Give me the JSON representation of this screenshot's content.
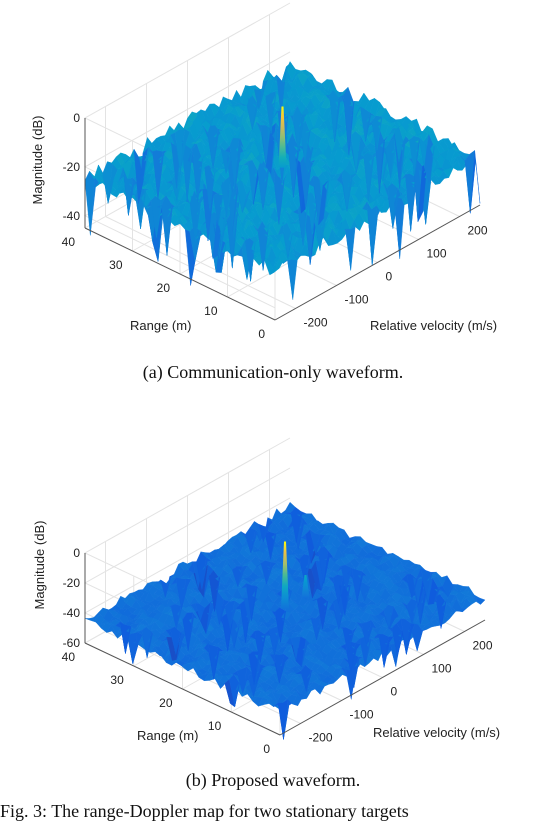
{
  "chart_data": [
    {
      "type": "surface",
      "caption": "(a) Communication-only waveform.",
      "zlabel": "Magnitude (dB)",
      "xlabel": "Relative velocity (m/s)",
      "ylabel": "Range (m)",
      "xticks": [
        "-200",
        "-100",
        "0",
        "100",
        "200"
      ],
      "yticks": [
        "0",
        "10",
        "20",
        "30",
        "40"
      ],
      "zticks": [
        "0",
        "-20",
        "-40"
      ],
      "xlim": [
        -250,
        250
      ],
      "ylim": [
        0,
        40
      ],
      "zlim": [
        -45,
        0
      ],
      "floor_level_db": -25,
      "peaks": [
        {
          "velocity": 0,
          "range": 20,
          "magnitude_db": 0
        }
      ],
      "colormap": "parula"
    },
    {
      "type": "surface",
      "caption": "(b) Proposed waveform.",
      "zlabel": "Magnitude (dB)",
      "xlabel": "Relative velocity (m/s)",
      "ylabel": "Range (m)",
      "xticks": [
        "-200",
        "-100",
        "0",
        "100",
        "200"
      ],
      "yticks": [
        "0",
        "10",
        "20",
        "30",
        "40"
      ],
      "zticks": [
        "0",
        "-20",
        "-40",
        "-60"
      ],
      "xlim": [
        -250,
        250
      ],
      "ylim": [
        0,
        40
      ],
      "zlim": [
        -60,
        0
      ],
      "floor_level_db": -45,
      "peaks": [
        {
          "velocity": 0,
          "range": 20,
          "magnitude_db": 0
        },
        {
          "velocity": 50,
          "range": 20,
          "magnitude_db": -30
        }
      ],
      "colormap": "parula"
    }
  ],
  "figure_caption": "Fig. 3: The range-Doppler map for two stationary targets"
}
